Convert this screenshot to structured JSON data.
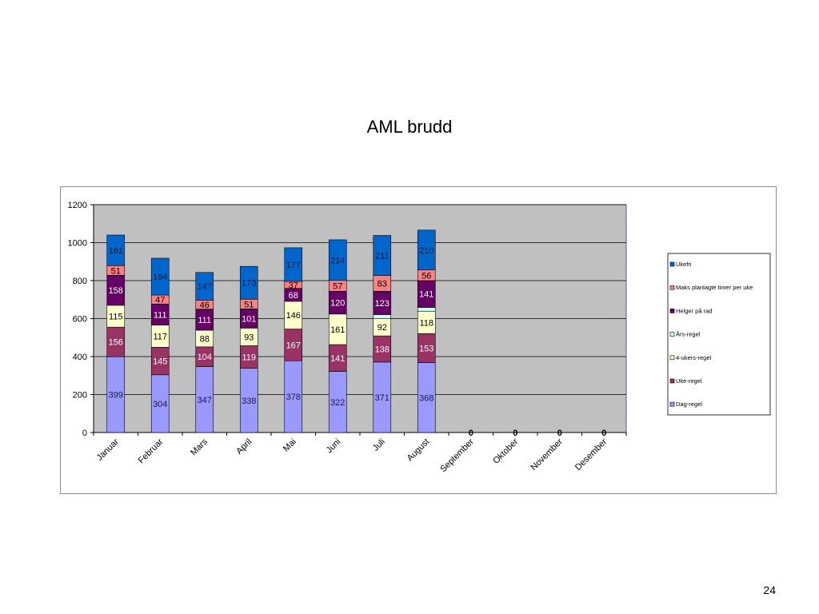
{
  "slide": {
    "title": "AML brudd",
    "page_number": "24"
  },
  "colors": {
    "plot_bg": "#c0c0c0",
    "Dag-regel": "#9999ff",
    "Uke-regel": "#993366",
    "4-ukers-regel": "#ffffcc",
    "Års-regel": "#ccffff",
    "Helger på rad": "#660066",
    "Maks planlagte timer per uke": "#ff8080",
    "Ukefri": "#0066cc"
  },
  "chart_data": {
    "type": "bar",
    "stacked": true,
    "title": "",
    "xlabel": "",
    "ylabel": "",
    "ylim": [
      0,
      1200
    ],
    "yticks": [
      0,
      200,
      400,
      600,
      800,
      1000,
      1200
    ],
    "grid": true,
    "legend_position": "right",
    "categories": [
      "Januar",
      "Februar",
      "Mars",
      "April",
      "Mai",
      "Juni",
      "Juli",
      "August",
      "September",
      "Oktober",
      "November",
      "Desember"
    ],
    "series": [
      {
        "name": "Dag-regel",
        "values": [
          399,
          304,
          347,
          338,
          378,
          322,
          371,
          368,
          0,
          0,
          0,
          0
        ]
      },
      {
        "name": "Uke-regel",
        "values": [
          156,
          145,
          104,
          119,
          167,
          141,
          138,
          153,
          0,
          0,
          0,
          0
        ]
      },
      {
        "name": "4-ukers-regel",
        "values": [
          115,
          117,
          88,
          93,
          146,
          161,
          92,
          118,
          0,
          0,
          0,
          0
        ]
      },
      {
        "name": "Års-regel",
        "values": [
          0,
          0,
          0,
          0,
          0,
          0,
          20,
          20,
          0,
          0,
          0,
          0
        ]
      },
      {
        "name": "Helger på rad",
        "values": [
          158,
          111,
          111,
          101,
          68,
          120,
          123,
          141,
          0,
          0,
          0,
          0
        ]
      },
      {
        "name": "Maks planlagte timer per uke",
        "values": [
          51,
          47,
          46,
          51,
          37,
          57,
          83,
          56,
          0,
          0,
          0,
          0
        ]
      },
      {
        "name": "Ukefri",
        "values": [
          161,
          194,
          147,
          173,
          177,
          214,
          211,
          210,
          0,
          0,
          0,
          0
        ]
      }
    ],
    "legend_order": [
      "Ukefri",
      "Maks planlagte timer per uke",
      "Helger på rad",
      "Års-regel",
      "4-ukers-regel",
      "Uke-regel",
      "Dag-regel"
    ],
    "label_color": {
      "Dag-regel": "#1a1a4d",
      "Uke-regel": "#ffffff",
      "4-ukers-regel": "#000000",
      "Helger på rad": "#ffffff",
      "Maks planlagte timer per uke": "#000000",
      "Ukefri": "#0d1a40"
    },
    "zero_labels": [
      {
        "category": "September",
        "text": "0"
      },
      {
        "category": "Oktober",
        "text": "0"
      },
      {
        "category": "November",
        "text": "0"
      },
      {
        "category": "Desember",
        "text": "0"
      }
    ]
  }
}
